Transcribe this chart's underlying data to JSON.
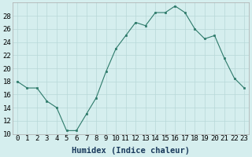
{
  "x": [
    0,
    1,
    2,
    3,
    4,
    5,
    6,
    7,
    8,
    9,
    10,
    11,
    12,
    13,
    14,
    15,
    16,
    17,
    18,
    19,
    20,
    21,
    22,
    23
  ],
  "y": [
    18,
    17,
    17,
    15,
    14,
    10.5,
    10.5,
    13,
    15.5,
    19.5,
    23,
    25,
    27,
    26.5,
    28.5,
    28.5,
    29.5,
    28.5,
    26,
    24.5,
    25,
    21.5,
    18.5,
    17
  ],
  "xlabel": "Humidex (Indice chaleur)",
  "ylim": [
    10,
    30
  ],
  "xlim": [
    -0.5,
    23.5
  ],
  "yticks": [
    10,
    12,
    14,
    16,
    18,
    20,
    22,
    24,
    26,
    28
  ],
  "xticks": [
    0,
    1,
    2,
    3,
    4,
    5,
    6,
    7,
    8,
    9,
    10,
    11,
    12,
    13,
    14,
    15,
    16,
    17,
    18,
    19,
    20,
    21,
    22,
    23
  ],
  "line_color": "#2d7a6a",
  "marker_color": "#2d7a6a",
  "bg_color": "#d5eeee",
  "grid_color": "#b8d8d8",
  "xlabel_fontsize": 7.5,
  "tick_fontsize": 6.5,
  "xlabel_color": "#1a3a5c"
}
